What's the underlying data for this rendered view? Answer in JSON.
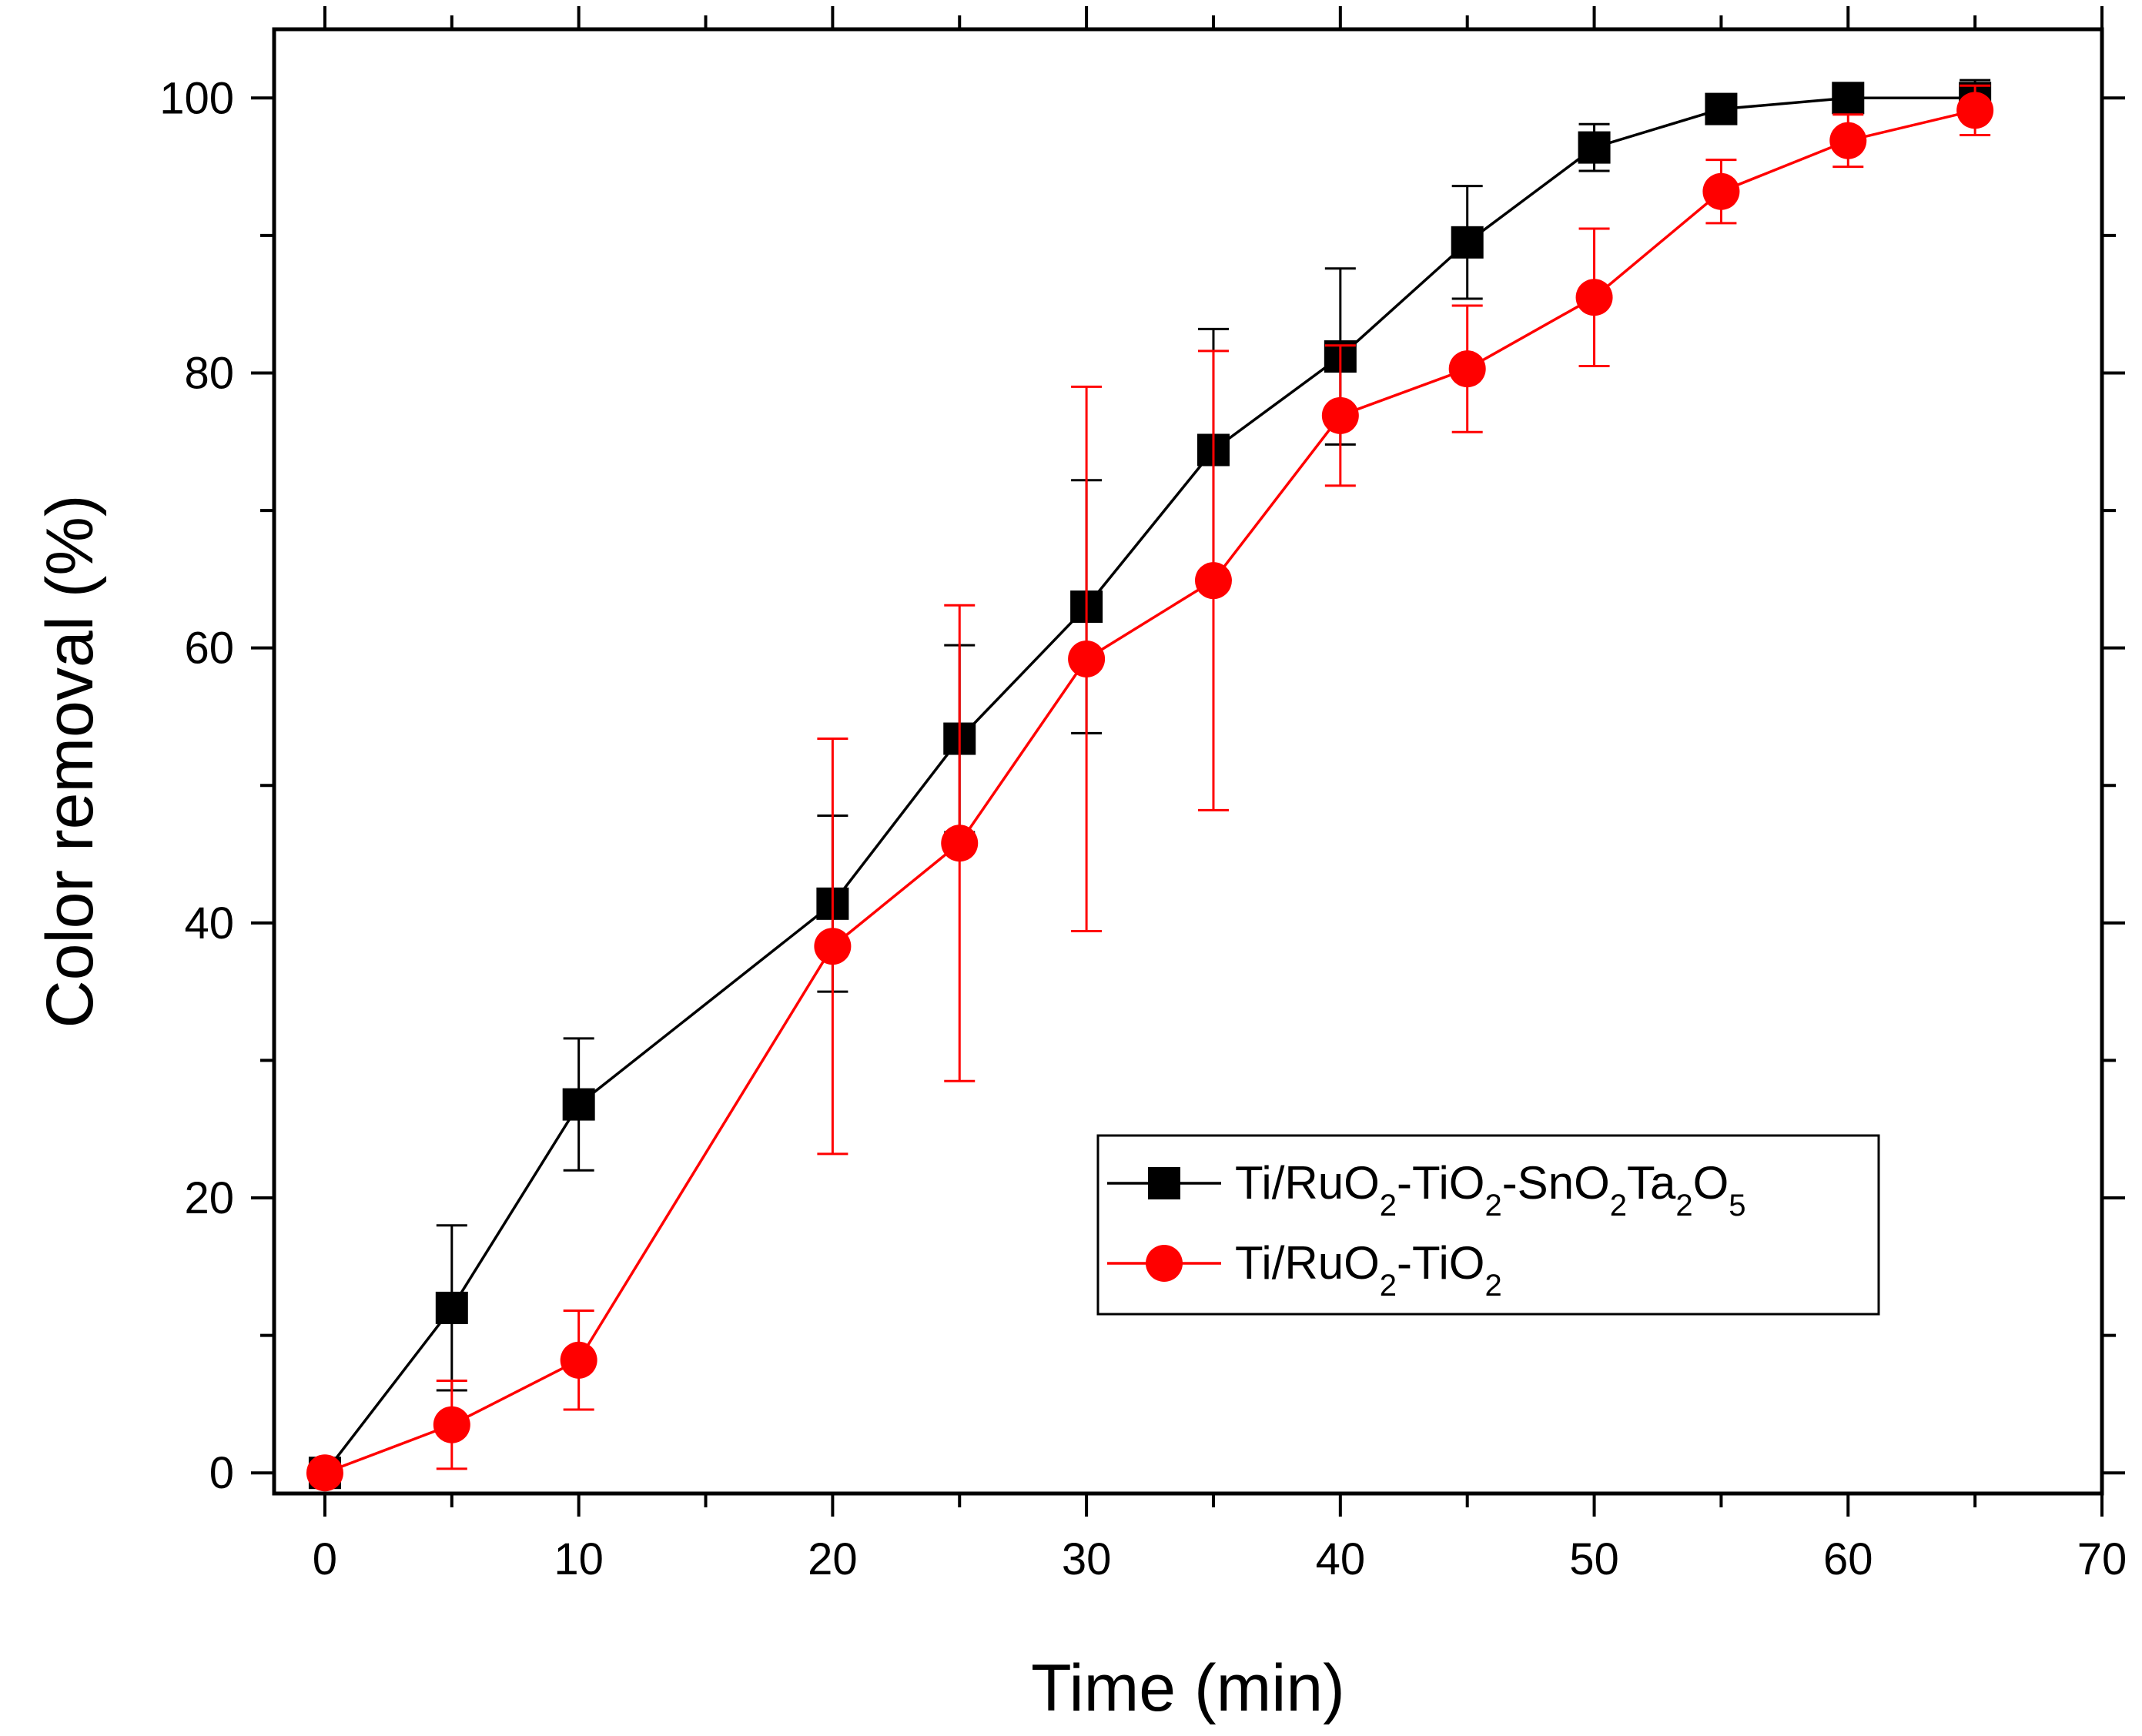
{
  "chart_data": {
    "type": "line",
    "xlabel": "Time (min)",
    "ylabel": "Color removal (%)",
    "xlim": [
      -2,
      70
    ],
    "ylim": [
      -1.5,
      105
    ],
    "xticks": [
      0,
      10,
      20,
      30,
      40,
      50,
      60,
      70
    ],
    "yticks": [
      0,
      20,
      40,
      60,
      80,
      100
    ],
    "legend_position": "right",
    "series": [
      {
        "name": "Ti/RuO2-TiO2-SnO2Ta2O5",
        "name_parts": [
          {
            "t": "Ti/RuO"
          },
          {
            "t": "2",
            "sub": true
          },
          {
            "t": "-TiO"
          },
          {
            "t": "2",
            "sub": true
          },
          {
            "t": "-SnO"
          },
          {
            "t": "2",
            "sub": true
          },
          {
            "t": "Ta"
          },
          {
            "t": "2",
            "sub": true
          },
          {
            "t": "O"
          },
          {
            "t": "5",
            "sub": true
          }
        ],
        "color": "#000000",
        "marker": "square",
        "x": [
          0,
          5,
          10,
          20,
          25,
          30,
          35,
          40,
          45,
          50,
          55,
          60,
          65
        ],
        "y": [
          0,
          12,
          26.8,
          41.4,
          53.4,
          63,
          74.4,
          81.2,
          89.5,
          96.4,
          99.2,
          100,
          100
        ],
        "err": [
          0,
          6,
          4.8,
          6.4,
          6.8,
          9.2,
          8.8,
          6.4,
          4.1,
          1.7,
          0,
          0.8,
          1.3
        ]
      },
      {
        "name": "Ti/RuO2-TiO2",
        "name_parts": [
          {
            "t": "Ti/RuO"
          },
          {
            "t": "2",
            "sub": true
          },
          {
            "t": "-TiO"
          },
          {
            "t": "2",
            "sub": true
          }
        ],
        "color": "#ff0000",
        "marker": "circle",
        "x": [
          0,
          5,
          10,
          20,
          25,
          30,
          35,
          40,
          45,
          50,
          55,
          60,
          65
        ],
        "y": [
          0,
          3.5,
          8.2,
          38.3,
          45.8,
          59.2,
          64.9,
          76.9,
          80.3,
          85.5,
          93.2,
          96.9,
          99.1
        ],
        "err": [
          0,
          3.2,
          3.6,
          15.1,
          17.3,
          19.8,
          16.7,
          5.1,
          4.6,
          5,
          2.3,
          1.9,
          1.8
        ]
      }
    ]
  }
}
